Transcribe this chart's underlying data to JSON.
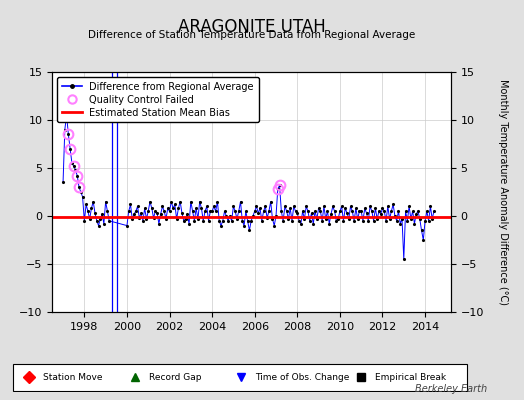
{
  "title": "ARAGONITE UTAH",
  "subtitle": "Difference of Station Temperature Data from Regional Average",
  "ylabel_right": "Monthly Temperature Anomaly Difference (°C)",
  "xlim": [
    1996.5,
    2015.2
  ],
  "ylim": [
    -10,
    15
  ],
  "yticks": [
    -10,
    -5,
    0,
    5,
    10,
    15
  ],
  "xticks": [
    1998,
    2000,
    2002,
    2004,
    2006,
    2008,
    2010,
    2012,
    2014
  ],
  "bias_level": -0.15,
  "background_color": "#e0e0e0",
  "plot_bg_color": "#ffffff",
  "line_color": "#0000ff",
  "bias_color": "#ff0000",
  "qc_color": "#ff80ff",
  "watermark": "Berkeley Earth",
  "obs_change_vlines_x": [
    1999.3,
    1999.55
  ],
  "data_x": [
    1997.0,
    1997.083,
    1997.167,
    1997.25,
    1997.333,
    1997.417,
    1997.5,
    1997.583,
    1997.667,
    1997.75,
    1997.833,
    1997.917,
    1998.0,
    1998.083,
    1998.167,
    1998.25,
    1998.333,
    1998.417,
    1998.5,
    1998.583,
    1998.667,
    1998.75,
    1998.833,
    1998.917,
    1999.0,
    1999.083,
    1999.167,
    2000.0,
    2000.083,
    2000.167,
    2000.25,
    2000.333,
    2000.417,
    2000.5,
    2000.583,
    2000.667,
    2000.75,
    2000.833,
    2000.917,
    2001.0,
    2001.083,
    2001.167,
    2001.25,
    2001.333,
    2001.417,
    2001.5,
    2001.583,
    2001.667,
    2001.75,
    2001.833,
    2001.917,
    2002.0,
    2002.083,
    2002.167,
    2002.25,
    2002.333,
    2002.417,
    2002.5,
    2002.583,
    2002.667,
    2002.75,
    2002.833,
    2002.917,
    2003.0,
    2003.083,
    2003.167,
    2003.25,
    2003.333,
    2003.417,
    2003.5,
    2003.583,
    2003.667,
    2003.75,
    2003.833,
    2003.917,
    2004.0,
    2004.083,
    2004.167,
    2004.25,
    2004.333,
    2004.417,
    2004.5,
    2004.583,
    2004.667,
    2004.75,
    2004.833,
    2004.917,
    2005.0,
    2005.083,
    2005.167,
    2005.25,
    2005.333,
    2005.417,
    2005.5,
    2005.583,
    2005.667,
    2005.75,
    2005.833,
    2005.917,
    2006.0,
    2006.083,
    2006.167,
    2006.25,
    2006.333,
    2006.417,
    2006.5,
    2006.583,
    2006.667,
    2006.75,
    2006.833,
    2006.917,
    2007.0,
    2007.083,
    2007.167,
    2007.25,
    2007.333,
    2007.417,
    2007.5,
    2007.583,
    2007.667,
    2007.75,
    2007.833,
    2007.917,
    2008.0,
    2008.083,
    2008.167,
    2008.25,
    2008.333,
    2008.417,
    2008.5,
    2008.583,
    2008.667,
    2008.75,
    2008.833,
    2008.917,
    2009.0,
    2009.083,
    2009.167,
    2009.25,
    2009.333,
    2009.417,
    2009.5,
    2009.583,
    2009.667,
    2009.75,
    2009.833,
    2009.917,
    2010.0,
    2010.083,
    2010.167,
    2010.25,
    2010.333,
    2010.417,
    2010.5,
    2010.583,
    2010.667,
    2010.75,
    2010.833,
    2010.917,
    2011.0,
    2011.083,
    2011.167,
    2011.25,
    2011.333,
    2011.417,
    2011.5,
    2011.583,
    2011.667,
    2011.75,
    2011.833,
    2011.917,
    2012.0,
    2012.083,
    2012.167,
    2012.25,
    2012.333,
    2012.417,
    2012.5,
    2012.583,
    2012.667,
    2012.75,
    2012.833,
    2012.917,
    2013.0,
    2013.083,
    2013.167,
    2013.25,
    2013.333,
    2013.417,
    2013.5,
    2013.583,
    2013.667,
    2013.75,
    2013.833,
    2013.917,
    2014.0,
    2014.083,
    2014.167,
    2014.25,
    2014.333,
    2014.417
  ],
  "data_y": [
    3.5,
    9.0,
    10.5,
    8.5,
    7.0,
    5.5,
    5.2,
    4.8,
    4.2,
    3.0,
    2.5,
    2.0,
    -0.5,
    1.2,
    0.5,
    -0.3,
    0.8,
    1.5,
    0.3,
    -0.5,
    -1.0,
    -0.3,
    0.2,
    -0.8,
    1.5,
    0.5,
    -0.5,
    -1.0,
    0.5,
    1.2,
    -0.3,
    0.2,
    0.5,
    1.0,
    -0.2,
    0.3,
    -0.5,
    0.8,
    -0.3,
    0.5,
    1.5,
    0.8,
    -0.2,
    0.5,
    0.3,
    -0.8,
    0.2,
    1.0,
    0.5,
    -0.3,
    0.8,
    0.5,
    1.5,
    0.8,
    1.2,
    -0.3,
    0.8,
    1.5,
    0.3,
    -0.5,
    -0.3,
    0.2,
    -0.8,
    1.5,
    0.5,
    -0.5,
    0.8,
    -0.3,
    1.5,
    0.8,
    -0.5,
    0.5,
    1.0,
    -0.5,
    0.5,
    0.5,
    1.0,
    0.5,
    1.5,
    -0.5,
    -1.0,
    -0.5,
    0.5,
    0.0,
    -0.5,
    0.0,
    -0.5,
    1.0,
    0.5,
    -0.3,
    0.5,
    1.5,
    -0.5,
    -1.0,
    0.5,
    -0.5,
    -1.5,
    -0.5,
    0.0,
    0.5,
    1.0,
    0.3,
    0.8,
    -0.5,
    0.5,
    1.0,
    -0.2,
    0.5,
    1.5,
    -0.3,
    -1.0,
    0.0,
    2.8,
    3.2,
    0.5,
    -0.5,
    1.0,
    0.5,
    -0.3,
    0.8,
    -0.5,
    1.0,
    0.5,
    0.3,
    -0.5,
    -0.8,
    0.5,
    -0.3,
    1.0,
    0.5,
    -0.5,
    0.3,
    -0.8,
    0.5,
    -0.3,
    0.8,
    0.5,
    -0.5,
    1.0,
    -0.3,
    0.5,
    -0.8,
    0.2,
    1.0,
    0.5,
    -0.5,
    -0.3,
    0.5,
    1.0,
    -0.5,
    0.8,
    0.3,
    -0.3,
    1.0,
    0.5,
    -0.5,
    0.8,
    -0.3,
    0.5,
    0.5,
    -0.5,
    0.8,
    0.3,
    -0.5,
    1.0,
    0.5,
    -0.5,
    0.8,
    -0.3,
    0.5,
    0.2,
    0.8,
    0.5,
    -0.5,
    1.0,
    -0.3,
    0.5,
    1.2,
    0.0,
    -0.5,
    0.5,
    -0.8,
    -0.3,
    -4.5,
    0.5,
    -0.5,
    1.0,
    -0.3,
    0.5,
    -0.8,
    0.2,
    0.5,
    -0.3,
    -1.5,
    -2.5,
    -0.5,
    0.5,
    -0.5,
    1.0,
    -0.3,
    0.5
  ],
  "qc_x": [
    1997.25,
    1997.333,
    1997.5,
    1997.667,
    1997.75,
    2007.083,
    2007.167
  ],
  "qc_y": [
    8.5,
    7.0,
    5.2,
    4.2,
    3.0,
    2.8,
    3.2
  ],
  "legend_items": [
    {
      "label": "Difference from Regional Average",
      "type": "line_dot",
      "color": "#0000ff"
    },
    {
      "label": "Quality Control Failed",
      "type": "open_circle",
      "color": "#ff80ff"
    },
    {
      "label": "Estimated Station Mean Bias",
      "type": "line",
      "color": "#ff0000"
    }
  ],
  "bottom_legend": [
    {
      "label": "Station Move",
      "marker": "D",
      "color": "#ff0000"
    },
    {
      "label": "Record Gap",
      "marker": "^",
      "color": "#006400"
    },
    {
      "label": "Time of Obs. Change",
      "marker": "v",
      "color": "#0000ff"
    },
    {
      "label": "Empirical Break",
      "marker": "s",
      "color": "#000000"
    }
  ]
}
